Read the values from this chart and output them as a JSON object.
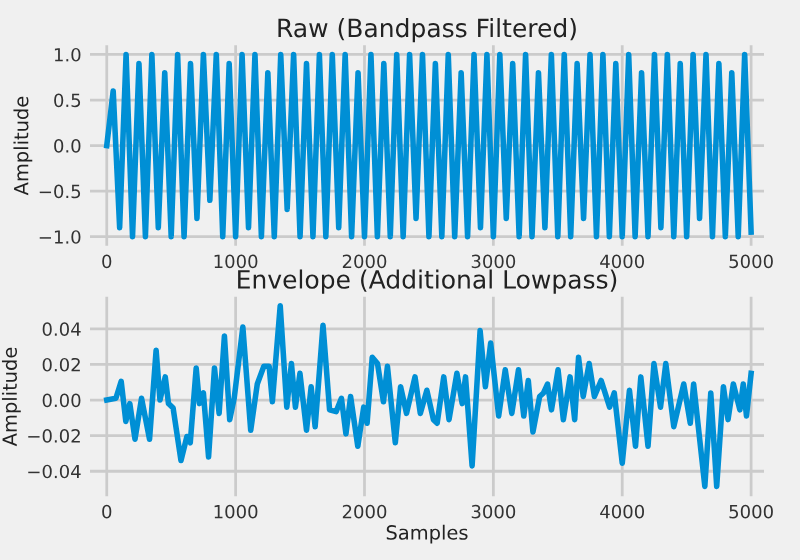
{
  "chart_data": [
    {
      "type": "line",
      "title": "Raw (Bandpass Filtered)",
      "ylabel": "Amplitude",
      "x": [
        0,
        50,
        100,
        150,
        200,
        250,
        300,
        350,
        400,
        450,
        500,
        550,
        600,
        650,
        700,
        750,
        800,
        850,
        900,
        950,
        1000,
        1050,
        1100,
        1150,
        1200,
        1250,
        1300,
        1350,
        1400,
        1450,
        1500,
        1550,
        1600,
        1650,
        1700,
        1750,
        1800,
        1850,
        1900,
        1950,
        2000,
        2050,
        2100,
        2150,
        2200,
        2250,
        2300,
        2350,
        2400,
        2450,
        2500,
        2550,
        2600,
        2650,
        2700,
        2750,
        2800,
        2850,
        2900,
        2950,
        3000,
        3050,
        3100,
        3150,
        3200,
        3250,
        3300,
        3350,
        3400,
        3450,
        3500,
        3550,
        3600,
        3650,
        3700,
        3750,
        3800,
        3850,
        3900,
        3950,
        4000,
        4050,
        4100,
        4150,
        4200,
        4250,
        4300,
        4350,
        4400,
        4450,
        4500,
        4550,
        4600,
        4650,
        4700,
        4750,
        4800,
        4850,
        4900,
        4950,
        5000
      ],
      "series": [
        {
          "color": "#008fd5",
          "values": [
            0,
            0.6,
            -0.9,
            1,
            -1,
            0.9,
            -1,
            1,
            -0.9,
            0.8,
            -1,
            1,
            -1,
            0.9,
            -0.8,
            1,
            -0.6,
            1,
            -1,
            0.9,
            -1,
            1,
            -0.9,
            1,
            -1,
            0.8,
            -1,
            1,
            -0.7,
            1,
            -1,
            0.9,
            -1,
            1,
            -1,
            1,
            -0.9,
            1,
            -1,
            0.8,
            -1,
            1,
            -1,
            0.9,
            -1,
            1,
            -1,
            1,
            -0.8,
            1,
            -1,
            0.9,
            -1,
            1,
            -1,
            0.8,
            -1,
            1,
            -0.9,
            1,
            -1,
            1,
            -0.8,
            0.9,
            -1,
            1,
            -1,
            0.8,
            -0.9,
            1,
            -1,
            1,
            -1,
            0.9,
            -0.8,
            1,
            -1,
            1,
            -1,
            0.9,
            -1,
            1,
            -1,
            0.8,
            -1,
            1,
            -0.9,
            1,
            -1,
            0.9,
            -1,
            1,
            -0.8,
            1,
            -1,
            0.9,
            -1,
            0.8,
            -1,
            1,
            -0.95
          ]
        }
      ],
      "xlim": [
        -130,
        5100
      ],
      "ylim": [
        -1.1,
        1.1
      ],
      "xticks": [
        0,
        1000,
        2000,
        3000,
        4000,
        5000
      ],
      "yticks": [
        {
          "value": -1,
          "label": "−1.0"
        },
        {
          "value": -0.5,
          "label": "−0.5"
        },
        {
          "value": 0,
          "label": "0.0"
        },
        {
          "value": 0.5,
          "label": "0.5"
        },
        {
          "value": 1,
          "label": "1.0"
        }
      ],
      "grid": true
    },
    {
      "type": "line",
      "title": "Envelope (Additional Lowpass)",
      "xlabel": "Samples",
      "ylabel": "Amplitude",
      "x": [
        0,
        71,
        112,
        148,
        179,
        219,
        270,
        332,
        383,
        413,
        454,
        479,
        515,
        576,
        622,
        648,
        694,
        719,
        750,
        790,
        836,
        872,
        913,
        954,
        989,
        1056,
        1117,
        1168,
        1219,
        1260,
        1285,
        1346,
        1397,
        1433,
        1464,
        1499,
        1550,
        1586,
        1617,
        1678,
        1729,
        1780,
        1821,
        1856,
        1892,
        1948,
        1994,
        2020,
        2060,
        2101,
        2147,
        2178,
        2239,
        2280,
        2326,
        2392,
        2433,
        2484,
        2535,
        2564,
        2615,
        2656,
        2717,
        2758,
        2784,
        2835,
        2897,
        2938,
        2979,
        3041,
        3092,
        3143,
        3195,
        3236,
        3271,
        3307,
        3359,
        3389,
        3420,
        3451,
        3502,
        3543,
        3595,
        3631,
        3661,
        3697,
        3743,
        3784,
        3836,
        3902,
        3938,
        4000,
        4056,
        4103,
        4144,
        4200,
        4246,
        4297,
        4338,
        4400,
        4477,
        4528,
        4554,
        4641,
        4687,
        4733,
        4785,
        4821,
        4862,
        4913,
        4939,
        4964,
        5000
      ],
      "series": [
        {
          "color": "#008fd5",
          "values": [
            0,
            0.001,
            0.0105,
            -0.012,
            -0.002,
            -0.022,
            0.001,
            -0.022,
            0.028,
            0,
            0.013,
            -0.002,
            -0.0045,
            -0.034,
            -0.0205,
            -0.024,
            0.018,
            -0.002,
            0.004,
            -0.032,
            0.018,
            -0.0075,
            0.036,
            -0.011,
            0.001,
            0.041,
            -0.017,
            0.009,
            0.019,
            0.019,
            -0.001,
            0.053,
            -0.004,
            0.0205,
            -0.004,
            0.015,
            -0.017,
            0.0075,
            -0.015,
            0.042,
            -0.0055,
            -0.0065,
            0.001,
            -0.019,
            0.002,
            -0.026,
            -0.004,
            -0.013,
            0.024,
            0.0205,
            -0.001,
            0.019,
            -0.024,
            0.0075,
            -0.0075,
            0.013,
            -0.0075,
            0.0055,
            -0.011,
            -0.013,
            0.013,
            -0.011,
            0.015,
            -0.002,
            0.013,
            -0.037,
            0.039,
            0.0075,
            0.032,
            -0.009,
            0.017,
            -0.0075,
            0.017,
            -0.009,
            0.011,
            -0.018,
            0.002,
            0.004,
            0.009,
            -0.0055,
            0.017,
            -0.011,
            0.013,
            -0.011,
            0.024,
            0.002,
            0.0205,
            0.002,
            0.011,
            -0.004,
            0.004,
            -0.0355,
            0.0055,
            -0.026,
            0.013,
            -0.026,
            0.0205,
            -0.004,
            0.0205,
            -0.015,
            0.009,
            -0.013,
            0.009,
            -0.0485,
            0.004,
            -0.0485,
            0.0075,
            -0.011,
            0.009,
            -0.0055,
            0.009,
            -0.009,
            0.015
          ]
        }
      ],
      "xlim": [
        -130,
        5100
      ],
      "ylim": [
        -0.054,
        0.058
      ],
      "xticks": [
        0,
        1000,
        2000,
        3000,
        4000,
        5000
      ],
      "yticks": [
        {
          "value": -0.04,
          "label": "−0.04"
        },
        {
          "value": -0.02,
          "label": "−0.02"
        },
        {
          "value": 0,
          "label": "0.00"
        },
        {
          "value": 0.02,
          "label": "0.02"
        },
        {
          "value": 0.04,
          "label": "0.04"
        }
      ],
      "grid": true
    }
  ]
}
